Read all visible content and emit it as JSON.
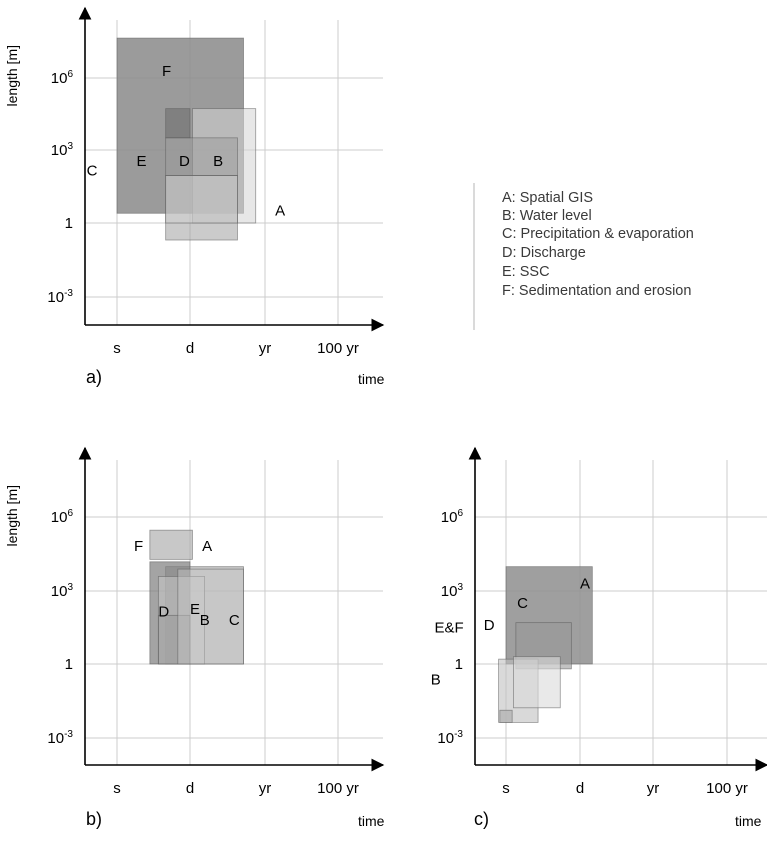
{
  "legend": {
    "items": [
      {
        "key": "A",
        "label": "A: Spatial GIS"
      },
      {
        "key": "B",
        "label": "B: Water level"
      },
      {
        "key": "C",
        "label": "C: Precipitation & evaporation"
      },
      {
        "key": "D",
        "label": "D: Discharge"
      },
      {
        "key": "E",
        "label": "E: SSC"
      },
      {
        "key": "F",
        "label": "F: Sedimentation and erosion"
      }
    ]
  },
  "axes": {
    "ylabel": "length [m]",
    "xlabel": "time",
    "xticks": [
      "s",
      "d",
      "yr",
      "100 yr"
    ],
    "yticks": [
      {
        "base": "10",
        "sup": "6"
      },
      {
        "base": "10",
        "sup": "3"
      },
      {
        "base": "1",
        "sup": ""
      },
      {
        "base": "10",
        "sup": "-3"
      }
    ]
  },
  "panels": [
    {
      "id": "a",
      "label": "a)",
      "boxes": [
        {
          "key": "A",
          "label": "A",
          "t": [
            0,
            5.2
          ],
          "l": [
            0.4,
            7.6
          ],
          "gray": "#8a8a8a",
          "opacity": 0.85
        },
        {
          "key": "F",
          "label": "F",
          "t": [
            3.1,
            5.7
          ],
          "l": [
            0,
            4.7
          ],
          "gray": "#d4d4d4",
          "opacity": 0.55
        },
        {
          "key": "C",
          "label": "C",
          "t": [
            2.0,
            4.95
          ],
          "l": [
            -0.7,
            1.95
          ],
          "gray": "#a0a0a0",
          "opacity": 0.55
        },
        {
          "key": "D",
          "label": "D",
          "t": [
            2.0,
            4.95
          ],
          "l": [
            1.95,
            3.5
          ],
          "gray": "#9c9c9c",
          "opacity": 0.5
        },
        {
          "key": "E",
          "label": "E",
          "t": [
            2.0,
            4.95
          ],
          "l": [
            0,
            1.95
          ],
          "gray": "#cfcfcf",
          "opacity": 0.5
        },
        {
          "key": "B",
          "label": "B",
          "t": [
            2.0,
            3.0
          ],
          "l": [
            3.5,
            4.7
          ],
          "gray": "#6e6e6e",
          "opacity": 0.6
        }
      ],
      "labels": {
        "A": {
          "t": 0.3,
          "l": 6.5
        },
        "B": {
          "t": 2.35,
          "l": 3.95
        },
        "D": {
          "t": 2.35,
          "l": 2.55
        },
        "E": {
          "t": 2.35,
          "l": 0.8
        },
        "F": {
          "t": 6.05,
          "l": 1.85
        },
        "C": {
          "t": 1.95,
          "l": -1.25
        }
      }
    },
    {
      "id": "b",
      "label": "b)",
      "boxes": [
        {
          "key": "A",
          "label": "A",
          "t": [
            2.0,
            5.2
          ],
          "l": [
            0,
            4.0
          ],
          "gray": "#a9a9a9",
          "opacity": 0.65
        },
        {
          "key": "B",
          "label": "B",
          "t": [
            1.35,
            3.0
          ],
          "l": [
            0,
            4.2
          ],
          "gray": "#7d7d7d",
          "opacity": 0.7
        },
        {
          "key": "C",
          "label": "C",
          "t": [
            1.35,
            3.1
          ],
          "l": [
            4.3,
            5.5
          ],
          "gray": "#b0b0b0",
          "opacity": 0.7
        },
        {
          "key": "E",
          "label": "E",
          "t": [
            1.7,
            3.6
          ],
          "l": [
            0,
            3.6
          ],
          "gray": "#c8c8c8",
          "opacity": 0.55
        },
        {
          "key": "D",
          "label": "D",
          "t": [
            1.7,
            3.0
          ],
          "l": [
            0,
            2.0
          ],
          "gray": "#9a9a9a",
          "opacity": 0.55
        },
        {
          "key": "F",
          "label": "F",
          "t": [
            2.5,
            5.2
          ],
          "l": [
            0,
            3.9
          ],
          "gray": "#c8c8c8",
          "opacity": 0.45
        }
      ],
      "labels": {
        "C": {
          "t": 1.6,
          "l": 4.6
        },
        "B": {
          "t": 1.6,
          "l": 3.4
        },
        "E": {
          "t": 2.05,
          "l": 3.0
        },
        "D": {
          "t": 1.95,
          "l": 1.7
        },
        "A": {
          "t": 4.65,
          "l": 3.5
        },
        "F": {
          "t": 4.65,
          "l": 0.7
        }
      }
    },
    {
      "id": "c",
      "label": "c)",
      "boxes": [
        {
          "key": "A",
          "label": "A",
          "t": [
            0,
            3.5
          ],
          "l": [
            0,
            4.0
          ],
          "gray": "#8e8e8e",
          "opacity": 0.85
        },
        {
          "key": "C",
          "label": "C",
          "t": [
            0.4,
            2.65
          ],
          "l": [
            -0.2,
            1.7
          ],
          "gray": "#9a9a9a",
          "opacity": 0.6
        },
        {
          "key": "E&F",
          "label": "E&F",
          "t": [
            -0.3,
            1.3
          ],
          "l": [
            -2.4,
            0.2
          ],
          "gray": "#c0c0c0",
          "opacity": 0.6
        },
        {
          "key": "D",
          "label": "D",
          "t": [
            0.3,
            2.2
          ],
          "l": [
            -1.8,
            0.3
          ],
          "gray": "#dadada",
          "opacity": 0.6
        },
        {
          "key": "B",
          "label": "B",
          "t": [
            -0.25,
            0.25
          ],
          "l": [
            -2.4,
            -1.9
          ],
          "gray": "#b4b4b4",
          "opacity": 0.8
        }
      ],
      "labels": {
        "A": {
          "t": 3.1,
          "l": 3.0
        },
        "C": {
          "t": 2.3,
          "l": 0.45
        },
        "D": {
          "t": 1.4,
          "l": -0.9
        },
        "E&F": {
          "t": 1.3,
          "l": -2.9
        },
        "B": {
          "t": -0.85,
          "l": -3.05
        }
      }
    }
  ]
}
